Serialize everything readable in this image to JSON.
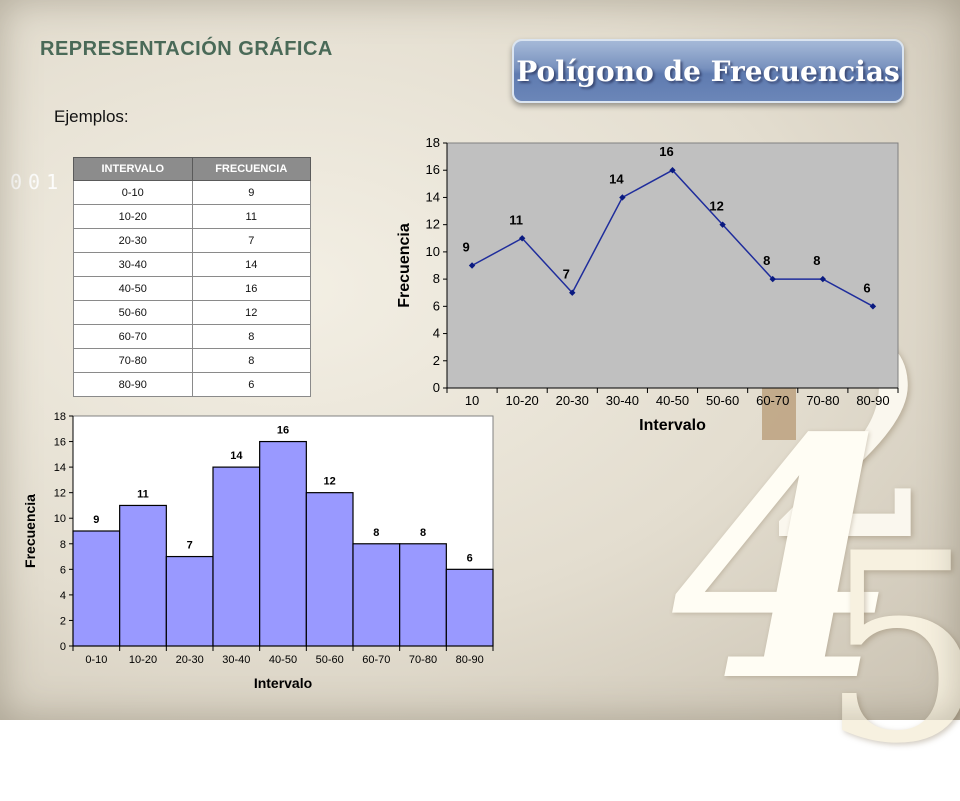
{
  "slide": {
    "heading": "REPRESENTACIÓN GRÁFICA",
    "title_button": "Polígono de Frecuencias",
    "examples_label": "Ejemplos:",
    "decorative_digits": "001",
    "decorative_numbers": [
      "2",
      "4",
      "5"
    ]
  },
  "table": {
    "headers": [
      "INTERVALO",
      "FRECUENCIA"
    ],
    "rows": [
      [
        "0-10",
        "9"
      ],
      [
        "10-20",
        "11"
      ],
      [
        "20-30",
        "7"
      ],
      [
        "30-40",
        "14"
      ],
      [
        "40-50",
        "16"
      ],
      [
        "50-60",
        "12"
      ],
      [
        "60-70",
        "8"
      ],
      [
        "70-80",
        "8"
      ],
      [
        "80-90",
        "6"
      ]
    ]
  },
  "chart_data": [
    {
      "type": "line",
      "categories": [
        "10",
        "10-20",
        "20-30",
        "30-40",
        "40-50",
        "50-60",
        "60-70",
        "70-80",
        "80-90"
      ],
      "values": [
        9,
        11,
        7,
        14,
        16,
        12,
        8,
        8,
        6
      ],
      "xlabel": "Intervalo",
      "ylabel": "Frecuencia",
      "ylim": [
        0,
        18
      ],
      "ytick_step": 2,
      "yticks": [
        "0",
        "2",
        "4",
        "6",
        "8",
        "10",
        "12",
        "14",
        "16",
        "18"
      ],
      "grid": false,
      "legend": "none",
      "colors": {
        "plot_bg": "#c0c0c0",
        "line": "#1f2d9c",
        "marker": "#0a1a80"
      }
    },
    {
      "type": "bar",
      "categories": [
        "0-10",
        "10-20",
        "20-30",
        "30-40",
        "40-50",
        "50-60",
        "60-70",
        "70-80",
        "80-90"
      ],
      "values": [
        9,
        11,
        7,
        14,
        16,
        12,
        8,
        8,
        6
      ],
      "xlabel": "Intervalo",
      "ylabel": "Frecuencia",
      "ylim": [
        0,
        18
      ],
      "ytick_step": 2,
      "yticks": [
        "0",
        "2",
        "4",
        "6",
        "8",
        "10",
        "12",
        "14",
        "16",
        "18"
      ],
      "grid": false,
      "legend": "none",
      "colors": {
        "plot_bg": "#ffffff",
        "bar": "#9999ff",
        "bar_edge": "#000000"
      }
    }
  ]
}
